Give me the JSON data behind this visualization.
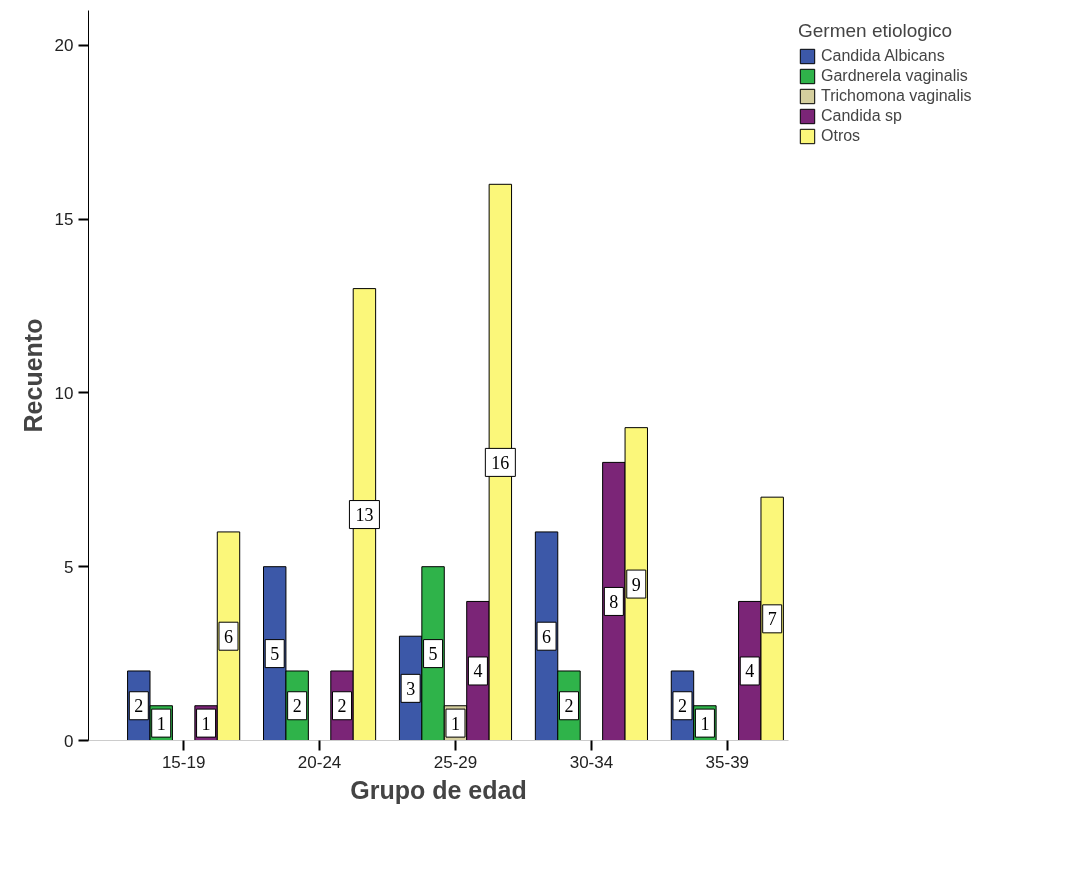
{
  "chart_data": {
    "type": "bar",
    "xlabel": "Grupo de edad",
    "ylabel": "Recuento",
    "legend_title": "Germen etiologico",
    "categories": [
      "15-19",
      "20-24",
      "25-29",
      "30-34",
      "35-39"
    ],
    "series": [
      {
        "name": "Candida Albicans",
        "color": "#3c58a8",
        "values": [
          2,
          5,
          3,
          6,
          2
        ]
      },
      {
        "name": "Gardnerela vaginalis",
        "color": "#2fb34a",
        "values": [
          1,
          2,
          5,
          2,
          1
        ]
      },
      {
        "name": "Trichomona vaginalis",
        "color": "#d5cf9e",
        "values": [
          null,
          null,
          1,
          null,
          null
        ]
      },
      {
        "name": "Candida sp",
        "color": "#7b2577",
        "values": [
          1,
          2,
          4,
          8,
          4
        ]
      },
      {
        "name": "Otros",
        "color": "#fbf77a",
        "values": [
          6,
          13,
          16,
          9,
          7
        ]
      }
    ],
    "ylim": [
      0,
      21
    ],
    "yticks": [
      0,
      5,
      10,
      15,
      20
    ],
    "grid": false,
    "legend": "top right",
    "data_labels": true
  }
}
